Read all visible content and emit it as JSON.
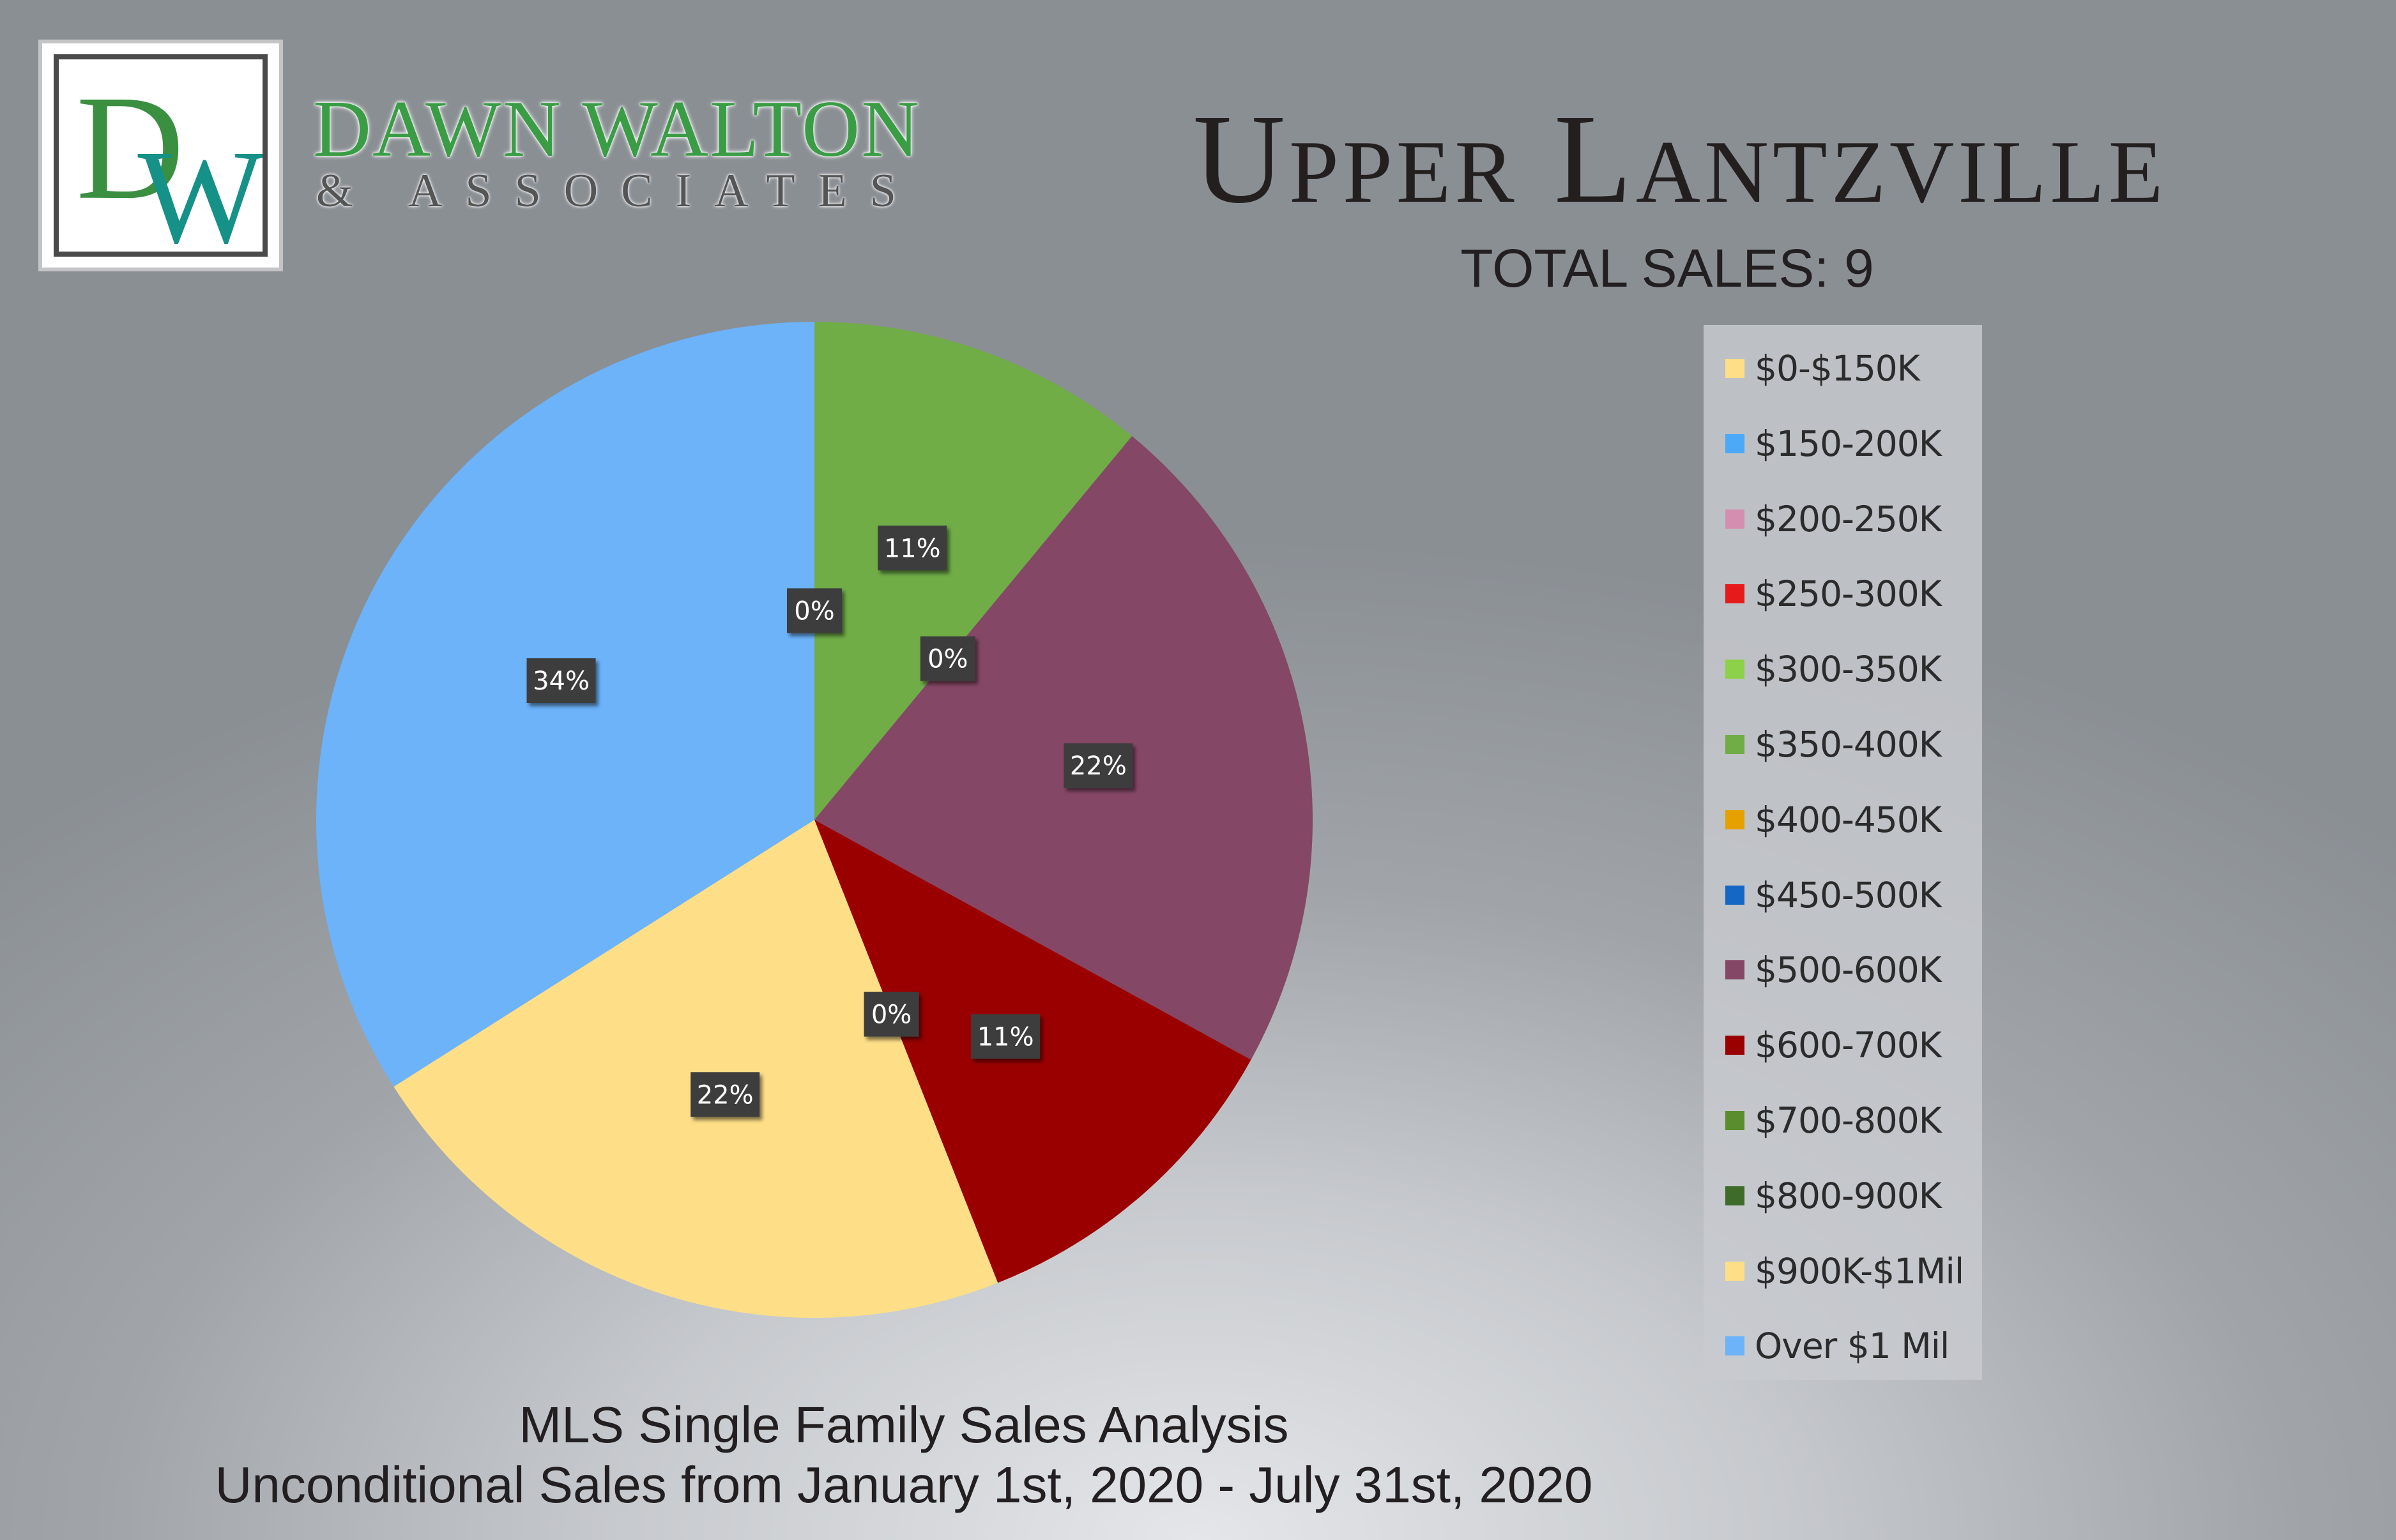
{
  "brand": {
    "monogram": "DW",
    "name": "DAWN WALTON",
    "tagline": "& ASSOCIATES"
  },
  "header": {
    "title": "Upper Lantzville",
    "total_sales": "TOTAL SALES: 9"
  },
  "footer": {
    "line1": "MLS Single Family Sales Analysis",
    "line2": "Unconditional Sales from January 1st, 2020 - July 31st, 2020"
  },
  "chart_data": {
    "type": "pie",
    "title": "Upper Lantzville",
    "categories": [
      "$0-$150K",
      "$150-200K",
      "$200-250K",
      "$250-300K",
      "$300-350K",
      "$350-400K",
      "$400-450K",
      "$450-500K",
      "$500-600K",
      "$600-700K",
      "$700-800K",
      "$800-900K",
      "$900K-$1Mil",
      "Over $1 Mil"
    ],
    "values": [
      0,
      0,
      0,
      0,
      0,
      11,
      0,
      0,
      22,
      11,
      0,
      0,
      22,
      34
    ],
    "data_labels": [
      "0%",
      "",
      "",
      "",
      "",
      "11%",
      "0%",
      "",
      "22%",
      "11%",
      "0%",
      "",
      "22%",
      "34%"
    ],
    "colors": [
      "#fedf87",
      "#4ca9f7",
      "#d48fb0",
      "#e51b1b",
      "#8dd14a",
      "#70ad47",
      "#e6a100",
      "#1467c4",
      "#854766",
      "#9b0000",
      "#5a8d2e",
      "#3e6b2a",
      "#fedf87",
      "#6cb3fa"
    ],
    "legend_position": "right"
  }
}
